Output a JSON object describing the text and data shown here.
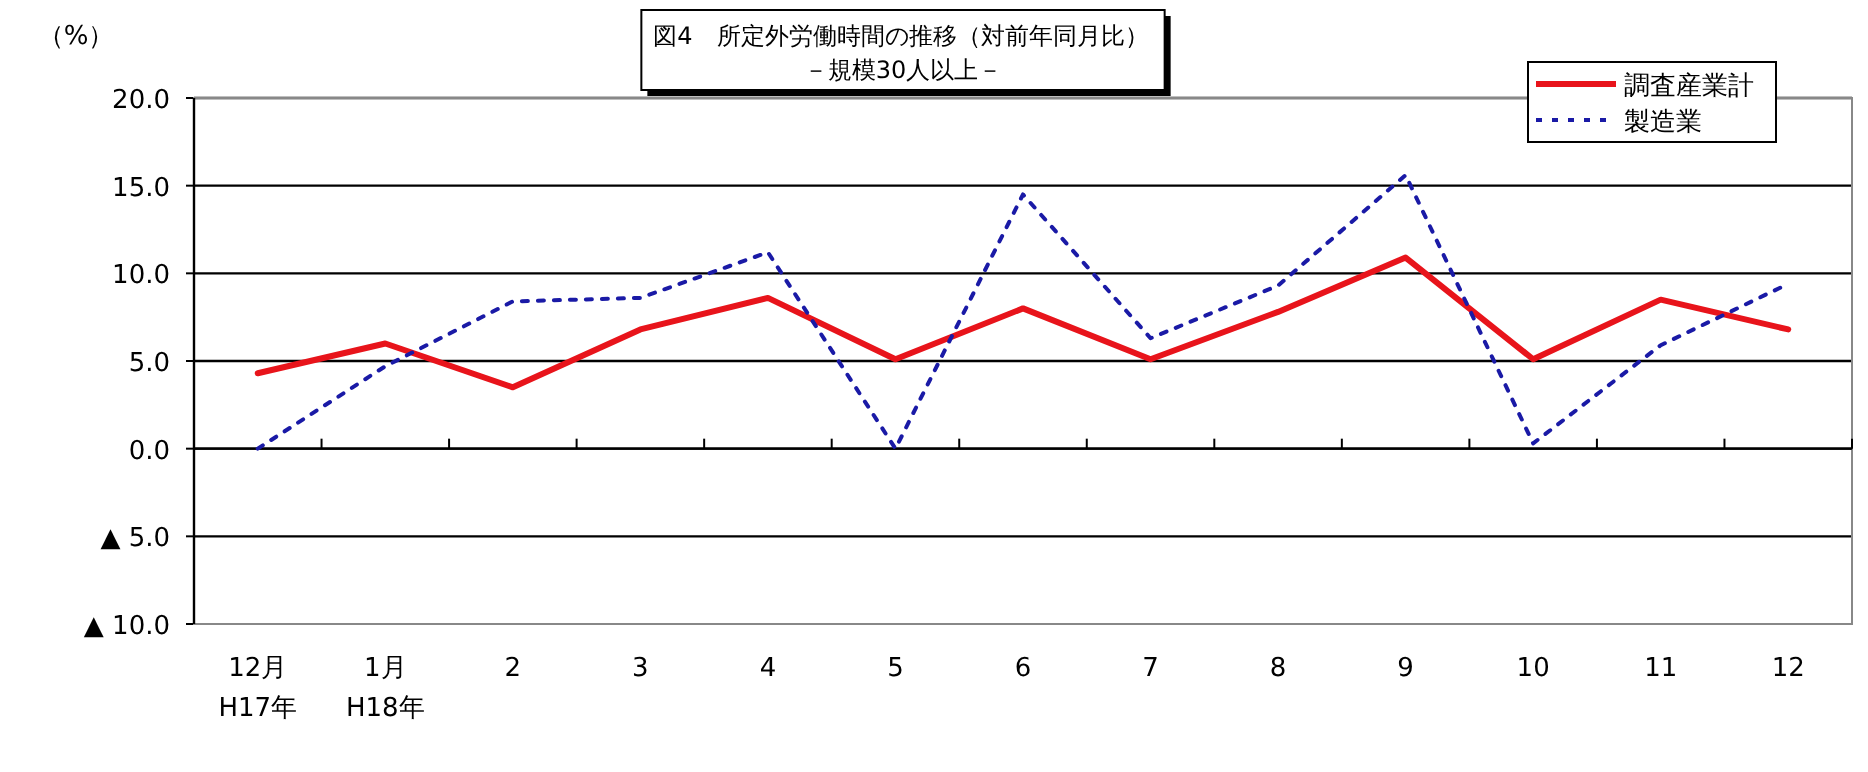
{
  "chart_data": {
    "type": "line",
    "title": "図4　所定外労働時間の推移（対前年同月比）",
    "subtitle": "－規模30人以上－",
    "ylabel": "（%）",
    "categories": [
      "12月\nH17年",
      "1月\nH18年",
      "2",
      "3",
      "4",
      "5",
      "6",
      "7",
      "8",
      "9",
      "10",
      "11",
      "12"
    ],
    "ylim": [
      -10,
      20
    ],
    "yticks": [
      {
        "value": -10,
        "label": "▲ 10.0"
      },
      {
        "value": -5,
        "label": "▲ 5.0"
      },
      {
        "value": 0,
        "label": "0.0"
      },
      {
        "value": 5,
        "label": "5.0"
      },
      {
        "value": 10,
        "label": "10.0"
      },
      {
        "value": 15,
        "label": "15.0"
      },
      {
        "value": 20,
        "label": "20.0"
      }
    ],
    "grid": "y",
    "legend": "top right",
    "series": [
      {
        "name": "調査産業計",
        "color": "#e8141b",
        "line_style": "solid",
        "values": [
          4.3,
          6.0,
          3.5,
          6.8,
          8.6,
          5.1,
          8.0,
          5.1,
          7.8,
          10.9,
          5.1,
          8.5,
          6.8
        ]
      },
      {
        "name": "製造業",
        "color": "#1a1aa6",
        "line_style": "dotted",
        "values": [
          0.0,
          4.7,
          8.4,
          8.6,
          11.2,
          0.0,
          14.5,
          6.3,
          9.3,
          15.6,
          0.3,
          5.9,
          9.4
        ]
      }
    ]
  }
}
